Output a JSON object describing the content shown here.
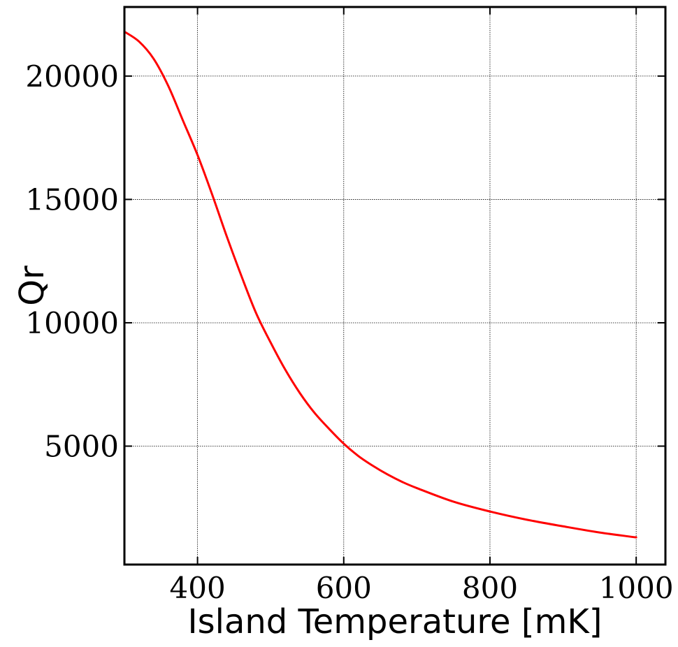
{
  "chart_data": {
    "type": "line",
    "title": "",
    "xlabel": "Island Temperature [mK]",
    "ylabel": "Qr",
    "xlim": [
      300,
      1040
    ],
    "ylim": [
      200,
      22800
    ],
    "grid": true,
    "x_ticks": [
      400,
      600,
      800,
      1000
    ],
    "y_ticks": [
      5000,
      10000,
      15000,
      20000
    ],
    "x_tick_labels": [
      "400",
      "600",
      "800",
      "1000"
    ],
    "y_tick_labels": [
      "5000",
      "10000",
      "15000",
      "20000"
    ],
    "series": [
      {
        "color": "#ff0000",
        "x": [
          300,
          320,
          340,
          360,
          380,
          400,
          420,
          440,
          460,
          480,
          500,
          520,
          540,
          560,
          580,
          600,
          620,
          640,
          660,
          680,
          700,
          750,
          800,
          850,
          900,
          950,
          1000
        ],
        "y": [
          21800,
          21400,
          20700,
          19600,
          18200,
          16800,
          15200,
          13500,
          11900,
          10400,
          9200,
          8100,
          7150,
          6350,
          5700,
          5100,
          4600,
          4200,
          3850,
          3550,
          3300,
          2750,
          2350,
          2020,
          1750,
          1500,
          1300
        ]
      }
    ]
  }
}
